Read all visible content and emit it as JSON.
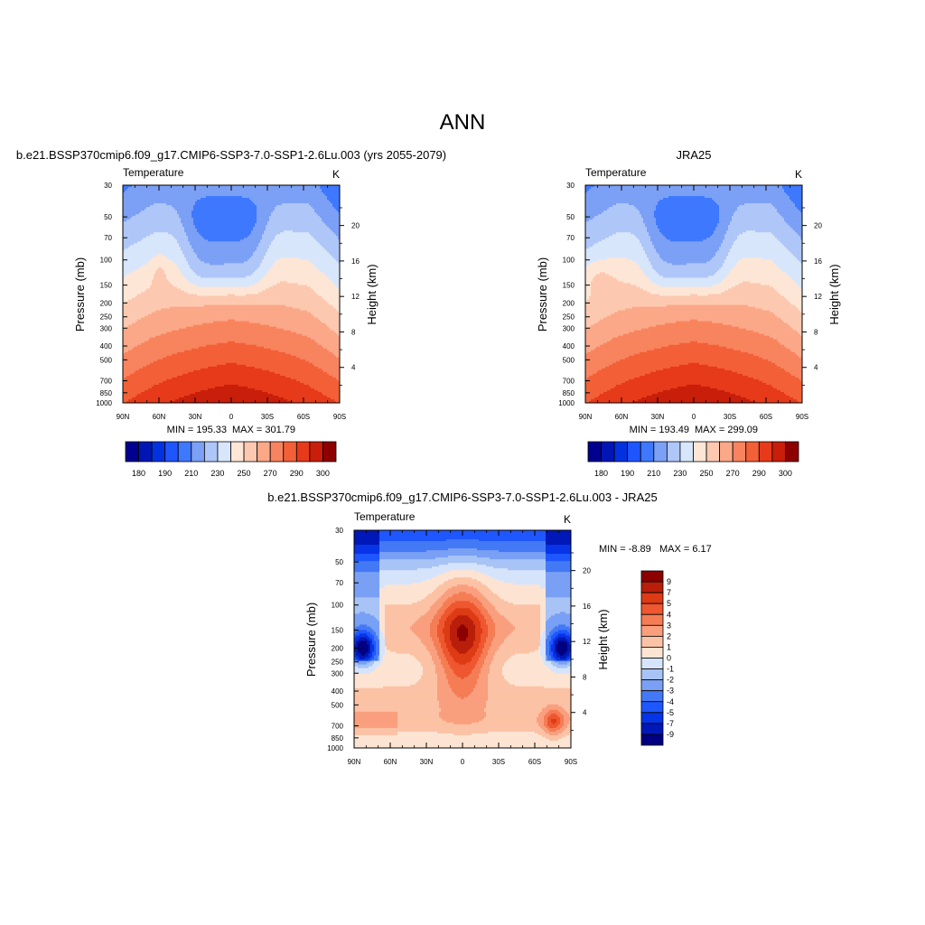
{
  "figure": {
    "title": "ANN",
    "panel_axes": {
      "pressure_ticks": [
        "30",
        "50",
        "70",
        "100",
        "150",
        "200",
        "250",
        "300",
        "400",
        "500",
        "700",
        "850",
        "1000"
      ],
      "lat_ticks": [
        "90N",
        "60N",
        "30N",
        "0",
        "30S",
        "60S",
        "90S"
      ]
    },
    "colors": {
      "temperature_levels": [
        "#000090",
        "#0016b4",
        "#0232e0",
        "#1e55ff",
        "#3e78ff",
        "#7ba0f5",
        "#afc6f8",
        "#d8e6fb",
        "#fde6d6",
        "#fcc9b0",
        "#fba888",
        "#f8845f",
        "#f36038",
        "#e63a1a",
        "#c81e0a",
        "#8e0000"
      ],
      "difference_levels": [
        "#000080",
        "#0018b8",
        "#0634e6",
        "#1e57ff",
        "#4479f5",
        "#79a0f4",
        "#a8c3f6",
        "#d6e4fb",
        "#fde4d2",
        "#fbc2a5",
        "#f99f7e",
        "#f57d55",
        "#ee5730",
        "#dd3a16",
        "#b81e0a",
        "#8c0000"
      ]
    }
  },
  "chart_data": [
    {
      "type": "heatmap",
      "panel": "model",
      "title": "b.e21.BSSP370cmip6.f09_g17.CMIP6-SSP3-7.0-SSP1-2.6Lu.003 (yrs 2055-2079)",
      "left_label": "Temperature",
      "right_label": "K",
      "ylabel": "Pressure (mb)",
      "y2label": "Height (km)",
      "height_ticks": [
        "4",
        "8",
        "12",
        "16",
        "20"
      ],
      "min_label": "MIN = 195.33",
      "max_label": "MAX = 301.79",
      "colorbar": {
        "orientation": "horizontal",
        "tick_labels": [
          "180",
          "190",
          "210",
          "230",
          "250",
          "270",
          "290",
          "300"
        ]
      },
      "zmin": 195.33,
      "zmax": 301.79
    },
    {
      "type": "heatmap",
      "panel": "reference",
      "title": "JRA25",
      "left_label": "Temperature",
      "right_label": "K",
      "ylabel": "Pressure (mb)",
      "y2label": "Height (km)",
      "height_ticks": [
        "4",
        "8",
        "12",
        "16",
        "20"
      ],
      "min_label": "MIN = 193.49",
      "max_label": "MAX = 299.09",
      "colorbar": {
        "orientation": "horizontal",
        "tick_labels": [
          "180",
          "190",
          "210",
          "230",
          "250",
          "270",
          "290",
          "300"
        ]
      },
      "zmin": 193.49,
      "zmax": 299.09
    },
    {
      "type": "heatmap",
      "panel": "difference",
      "title": "b.e21.BSSP370cmip6.f09_g17.CMIP6-SSP3-7.0-SSP1-2.6Lu.003 - JRA25",
      "left_label": "Temperature",
      "right_label": "K",
      "ylabel": "Pressure (mb)",
      "y2label": "Height (km)",
      "height_ticks": [
        "4",
        "8",
        "12",
        "16",
        "20"
      ],
      "min_label": "MIN =  -8.89",
      "max_label": "MAX =   6.17",
      "colorbar": {
        "orientation": "vertical",
        "tick_labels": [
          "9",
          "7",
          "5",
          "4",
          "3",
          "2",
          "1",
          "0",
          "-1",
          "-2",
          "-3",
          "-4",
          "-5",
          "-7",
          "-9"
        ]
      },
      "zmin": -8.89,
      "zmax": 6.17
    }
  ]
}
